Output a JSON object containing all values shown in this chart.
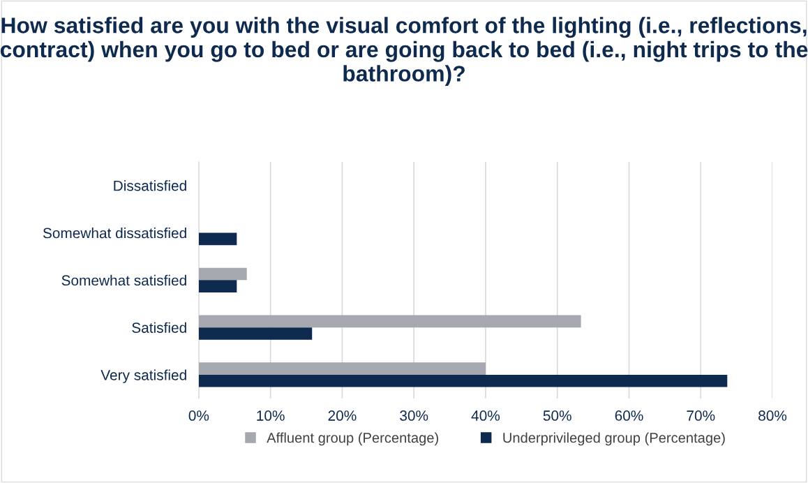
{
  "chart_data": {
    "type": "bar",
    "orientation": "horizontal",
    "title": "How satisfied are you with the visual comfort of the lighting (i.e., reflections, contract) when you go to bed or are going back to bed (i.e., night trips to the bathroom)?",
    "categories": [
      "Dissatisfied",
      "Somewhat dissatisfied",
      "Somewhat satisfied",
      "Satisfied",
      "Very satisfied"
    ],
    "series": [
      {
        "name": "Affluent group (Percentage)",
        "color": "#a5a8ae",
        "values": [
          0,
          0,
          6.7,
          53.3,
          40.0
        ]
      },
      {
        "name": "Underprivileged group (Percentage)",
        "color": "#0e2a4f",
        "values": [
          0,
          5.3,
          5.3,
          15.8,
          73.7
        ]
      }
    ],
    "xlim": [
      0,
      80
    ],
    "xticks": [
      {
        "value": 0,
        "label": "0%"
      },
      {
        "value": 10,
        "label": "10%"
      },
      {
        "value": 20,
        "label": "20%"
      },
      {
        "value": 30,
        "label": "30%"
      },
      {
        "value": 40,
        "label": "40%"
      },
      {
        "value": 50,
        "label": "50%"
      },
      {
        "value": 60,
        "label": "60%"
      },
      {
        "value": 70,
        "label": "70%"
      },
      {
        "value": 80,
        "label": "80%"
      }
    ],
    "grid": "x",
    "legend": "bottom"
  }
}
